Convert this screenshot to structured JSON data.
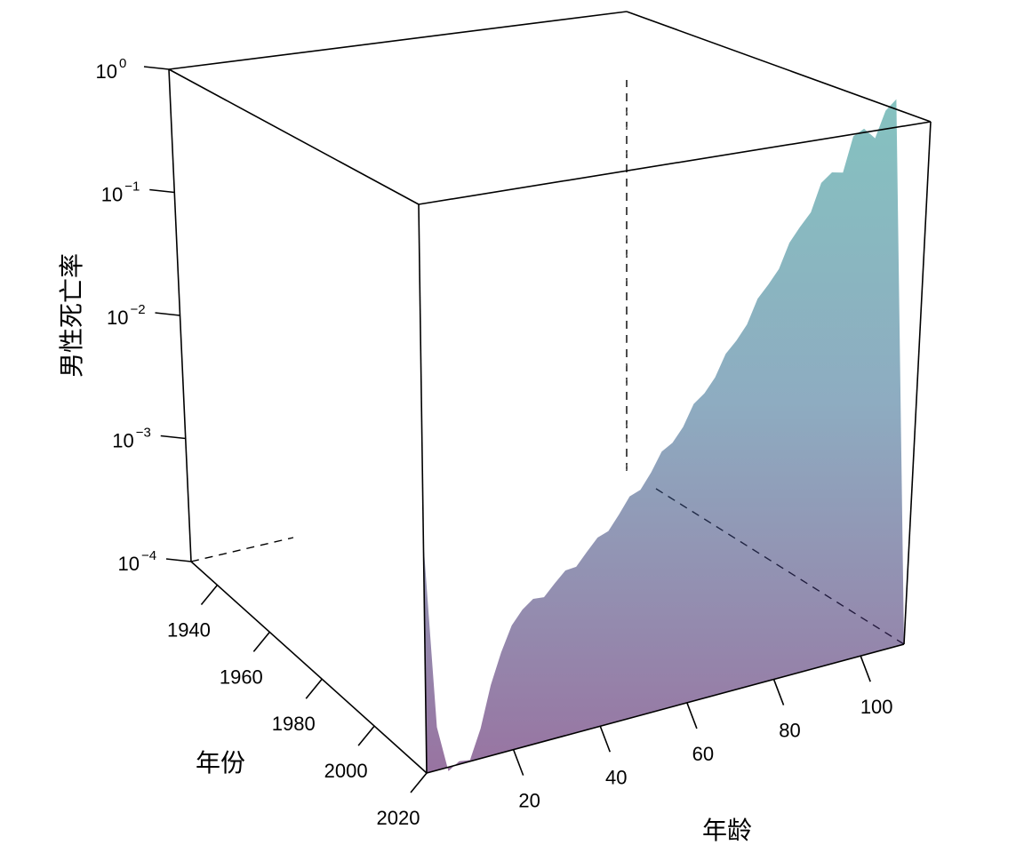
{
  "chart_data": {
    "type": "surface",
    "title": "",
    "xlabel": "年龄",
    "ylabel": "年份",
    "zlabel": "男性死亡率",
    "z_scale": "log10",
    "xlim": [
      0,
      110
    ],
    "ylim": [
      1930,
      2020
    ],
    "zlim": [
      0.0001,
      1
    ],
    "x_ticks": [
      20,
      40,
      60,
      80,
      100
    ],
    "y_ticks": [
      1940,
      1960,
      1980,
      2000,
      2020
    ],
    "z_ticks": [
      {
        "base": "10",
        "exp": "0"
      },
      {
        "base": "10",
        "exp": "−1"
      },
      {
        "base": "10",
        "exp": "−2"
      },
      {
        "base": "10",
        "exp": "−3"
      },
      {
        "base": "10",
        "exp": "−4"
      }
    ],
    "z_tick_values": [
      1,
      0.1,
      0.01,
      0.001,
      0.0001
    ],
    "colormap": "viridis",
    "colors": [
      "#440154",
      "#3b528b",
      "#21908c",
      "#5dc863",
      "#bddf26"
    ],
    "surface_profile": {
      "ages": [
        0,
        1,
        5,
        10,
        15,
        20,
        25,
        30,
        40,
        50,
        60,
        70,
        80,
        90,
        100,
        110
      ],
      "mortality_1930": [
        0.07,
        0.015,
        0.0025,
        0.0015,
        0.002,
        0.0035,
        0.004,
        0.0045,
        0.007,
        0.012,
        0.025,
        0.055,
        0.12,
        0.25,
        0.45,
        0.6
      ],
      "mortality_2020": [
        0.004,
        0.0003,
        0.0001,
        0.0001,
        0.0003,
        0.0008,
        0.001,
        0.0012,
        0.002,
        0.004,
        0.009,
        0.022,
        0.06,
        0.17,
        0.4,
        0.6
      ]
    }
  }
}
